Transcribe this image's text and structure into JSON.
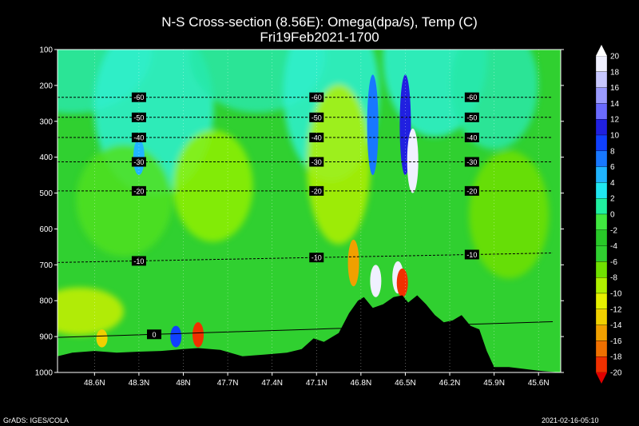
{
  "chart_data": {
    "type": "heatmap",
    "title": "N-S Cross-section (8.56E): Omega(dpa/s), Temp (C)",
    "subtitle": "Fri19Feb2021-1700",
    "y_axis": {
      "ticks": [
        "100",
        "200",
        "300",
        "400",
        "500",
        "600",
        "700",
        "800",
        "900",
        "1000"
      ],
      "range": [
        100,
        1000
      ],
      "inverted": true
    },
    "x_axis": {
      "ticks": [
        "48.6N",
        "48.3N",
        "48N",
        "47.7N",
        "47.4N",
        "47.1N",
        "46.8N",
        "46.5N",
        "46.2N",
        "45.9N",
        "45.6N"
      ],
      "range_lat": [
        48.85,
        45.45
      ]
    },
    "colorbar": {
      "levels": [
        "20",
        "18",
        "16",
        "14",
        "12",
        "10",
        "8",
        "6",
        "4",
        "2",
        "0",
        "-2",
        "-4",
        "-6",
        "-8",
        "-10",
        "-12",
        "-14",
        "-16",
        "-18",
        "-20"
      ],
      "colors": [
        "#f0f0ff",
        "#c8c8ff",
        "#9a9aff",
        "#6a6aff",
        "#2020e0",
        "#1040ff",
        "#1878ff",
        "#20b4ff",
        "#20e6f0",
        "#20f0a0",
        "#40e840",
        "#28c828",
        "#30d030",
        "#70e000",
        "#b0f000",
        "#e6f000",
        "#f0d000",
        "#f0a000",
        "#f07000",
        "#f03000",
        "#e00000"
      ]
    },
    "temperature_contours": [
      {
        "label": "-60",
        "pressure": 233
      },
      {
        "label": "-50",
        "pressure": 289
      },
      {
        "label": "-40",
        "pressure": 345
      },
      {
        "label": "-30",
        "pressure": 413
      },
      {
        "label": "-20",
        "pressure": 494
      },
      {
        "label": "-10",
        "pressure": 680
      },
      {
        "label": "0",
        "pressure": 880
      }
    ],
    "strong_features": [
      {
        "lat": 46.85,
        "p_top": 630,
        "p_bot": 760,
        "omega": -14
      },
      {
        "lat": 46.7,
        "p_top": 700,
        "p_bot": 790,
        "omega": 20
      },
      {
        "lat": 46.55,
        "p_top": 690,
        "p_bot": 780,
        "omega": 20
      },
      {
        "lat": 46.5,
        "p_top": 170,
        "p_bot": 450,
        "omega": 12
      },
      {
        "lat": 46.45,
        "p_top": 320,
        "p_bot": 500,
        "omega": 20
      },
      {
        "lat": 46.52,
        "p_top": 710,
        "p_bot": 790,
        "omega": -18
      },
      {
        "lat": 46.42,
        "p_top": 520,
        "p_bot": 640,
        "omega": -4
      },
      {
        "lat": 46.72,
        "p_top": 170,
        "p_bot": 450,
        "omega": 8
      },
      {
        "lat": 48.55,
        "p_top": 880,
        "p_bot": 930,
        "omega": -12
      },
      {
        "lat": 47.9,
        "p_top": 860,
        "p_bot": 930,
        "omega": -18
      },
      {
        "lat": 48.05,
        "p_top": 870,
        "p_bot": 930,
        "omega": 10
      },
      {
        "lat": 48.3,
        "p_top": 350,
        "p_bot": 450,
        "omega": 6
      }
    ]
  },
  "footer": {
    "left": "GrADS: IGES/COLA",
    "right": "2021-02-16-05:10"
  },
  "colors": {
    "background": "#000000",
    "field_base": "#30d030",
    "terrain": "#000000"
  }
}
